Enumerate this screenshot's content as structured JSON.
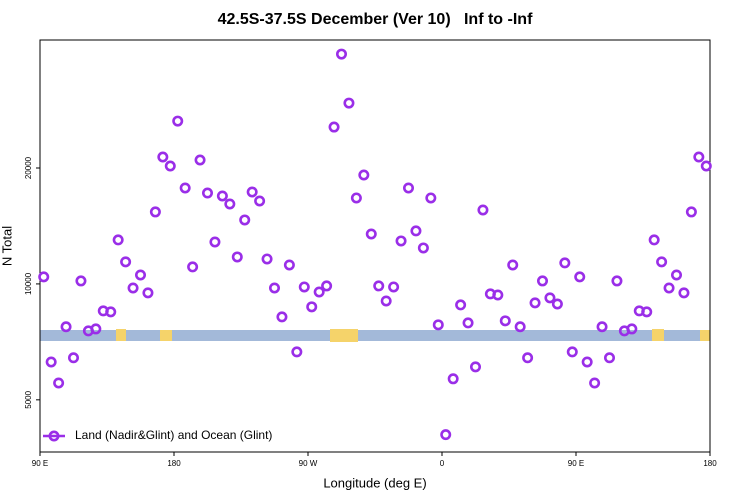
{
  "chart_data": {
    "type": "scatter",
    "title": "42.5S-37.5S December (Ver 10)   Inf to -Inf",
    "x_label": "Longitude (deg E)",
    "y_label": "N Total",
    "xlim": [
      90,
      540
    ],
    "xticks": [
      {
        "value": 90,
        "label": "90 E"
      },
      {
        "value": 180,
        "label": "180"
      },
      {
        "value": 270,
        "label": "90 W"
      },
      {
        "value": 360,
        "label": "0"
      },
      {
        "value": 450,
        "label": "90 E"
      },
      {
        "value": 540,
        "label": "180"
      }
    ],
    "ylim": [
      3660,
      43000
    ],
    "yticks": [
      5000,
      10000,
      20000
    ],
    "log_y": true,
    "legend": "bottom-left",
    "series": [
      {
        "name": "Land (Nadir&Glint) and Ocean (Glint)",
        "color": "#9a2ee8",
        "x": [
          92.5,
          97.5,
          102.5,
          107.5,
          112.5,
          117.5,
          122.5,
          127.5,
          132.5,
          137.5,
          142.5,
          147.5,
          152.5,
          157.5,
          162.5,
          167.5,
          172.5,
          177.5,
          182.5,
          187.5,
          192.5,
          197.5,
          202.5,
          207.5,
          212.5,
          217.5,
          222.5,
          227.5,
          232.5,
          237.5,
          242.5,
          247.5,
          252.5,
          257.5,
          262.5,
          267.5,
          272.5,
          277.5,
          282.5,
          287.5,
          292.5,
          297.5,
          302.5,
          307.5,
          312.5,
          317.5,
          322.5,
          327.5,
          332.5,
          337.5,
          342.5,
          347.5,
          352.5,
          357.5,
          362.5,
          367.5,
          372.5,
          377.5,
          382.5,
          387.5,
          392.5,
          397.5,
          402.5,
          407.5,
          412.5,
          417.5,
          422.5,
          427.5,
          432.5,
          437.5,
          442.5,
          447.5,
          452.5,
          457.5,
          462.5,
          467.5,
          472.5,
          477.5,
          482.5,
          487.5,
          492.5,
          497.5,
          502.5,
          507.5,
          512.5,
          517.5,
          522.5,
          527.5,
          532.5,
          537.5
        ],
        "values": [
          10430,
          6270,
          5530,
          7740,
          6430,
          10180,
          7550,
          7640,
          8510,
          8460,
          13010,
          11410,
          9760,
          10550,
          9480,
          15380,
          21360,
          20240,
          26480,
          17750,
          11070,
          20980,
          17220,
          12850,
          16920,
          16130,
          11750,
          14660,
          17330,
          16420,
          11610,
          9760,
          8210,
          11200,
          6660,
          9820,
          8720,
          9530,
          9880,
          25550,
          39530,
          29490,
          16720,
          19180,
          13480,
          9880,
          9030,
          9820,
          12930,
          17750,
          13730,
          12400,
          16720,
          7830,
          4060,
          5670,
          8820,
          7920,
          6090,
          15560,
          9420,
          9360,
          8020,
          11200,
          7740,
          6430,
          8930,
          10180,
          9200,
          8870,
          11340,
          6660,
          10430,
          6270,
          5530,
          7740,
          6430,
          10180,
          7550,
          7640,
          8510,
          8460,
          13010,
          11410,
          9760,
          10550,
          9480,
          15380,
          21360,
          20240
        ]
      }
    ]
  }
}
